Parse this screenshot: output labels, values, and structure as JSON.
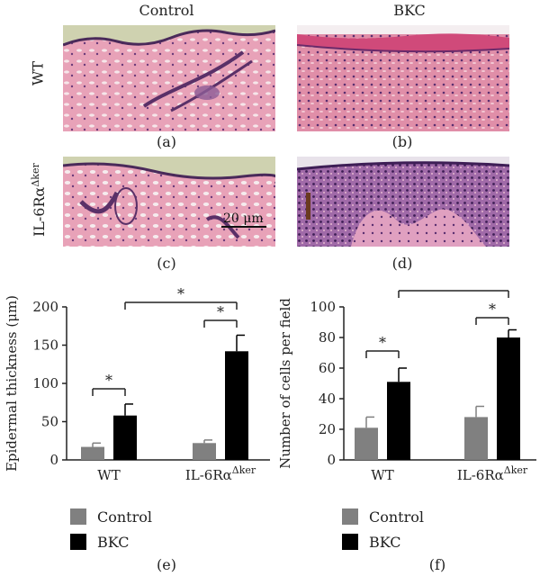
{
  "columns": [
    "Control",
    "BKC"
  ],
  "rows": [
    "WT",
    "IL-6Rα",
    "Δker"
  ],
  "panel_labels": [
    "(a)",
    "(b)",
    "(c)",
    "(d)",
    "(e)",
    "(f)"
  ],
  "scale_bar": "20 μm",
  "legend": [
    "Control",
    "BKC"
  ],
  "colors": {
    "control": "#808080",
    "bkc": "#000000",
    "he_pink": "#e690a8",
    "he_purple": "#7a3e80"
  },
  "chart_data": [
    {
      "type": "bar",
      "ylabel": "Epidermal thickness (μm)",
      "ylim": [
        0,
        200
      ],
      "yticks": [
        "0",
        "50",
        "100",
        "150",
        "200"
      ],
      "categories": [
        "WT",
        "IL-6RαΔker"
      ],
      "series": [
        {
          "name": "Control",
          "values": [
            17,
            22
          ],
          "errors": [
            5,
            4
          ]
        },
        {
          "name": "BKC",
          "values": [
            58,
            142
          ],
          "errors": [
            15,
            21
          ]
        }
      ],
      "significance": "*"
    },
    {
      "type": "bar",
      "ylabel": "Number of cells per field",
      "ylim": [
        0,
        100
      ],
      "yticks": [
        "0",
        "20",
        "40",
        "60",
        "80",
        "100"
      ],
      "categories": [
        "WT",
        "IL-6RαΔker"
      ],
      "series": [
        {
          "name": "Control",
          "values": [
            21,
            28
          ],
          "errors": [
            7,
            7
          ]
        },
        {
          "name": "BKC",
          "values": [
            51,
            80
          ],
          "errors": [
            9,
            5
          ]
        }
      ],
      "significance": "*"
    }
  ]
}
